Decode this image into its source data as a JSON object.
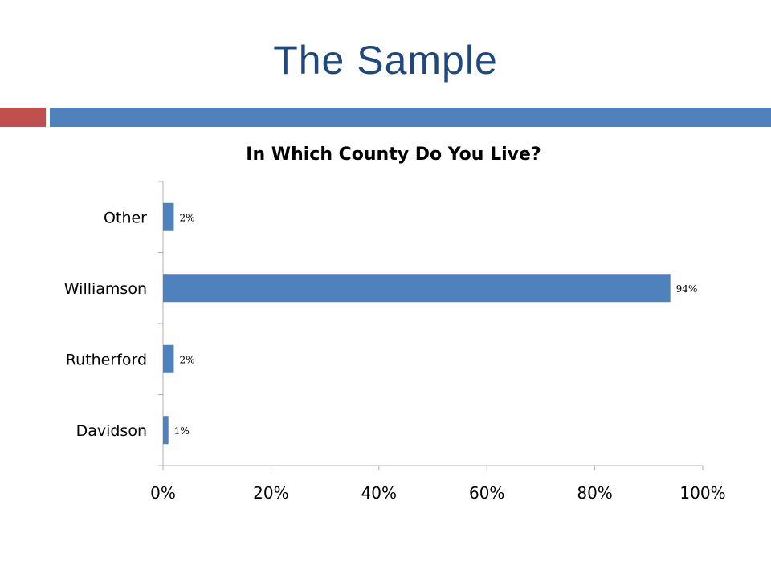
{
  "slide": {
    "title": "The Sample"
  },
  "colors": {
    "title": "#1f497d",
    "accent_red": "#c0504d",
    "accent_blue": "#4f81bd",
    "bar": "#4f81bd",
    "axis": "#b0b0b0"
  },
  "chart_data": {
    "type": "bar",
    "orientation": "horizontal",
    "title": "In Which County Do You Live?",
    "categories": [
      "Other",
      "Williamson",
      "Rutherford",
      "Davidson"
    ],
    "values": [
      2,
      94,
      2,
      1
    ],
    "data_labels": [
      "2%",
      "94%",
      "2%",
      "1%"
    ],
    "x_ticks": [
      "0%",
      "20%",
      "40%",
      "60%",
      "80%",
      "100%"
    ],
    "xlim": [
      0,
      100
    ],
    "xlabel": "",
    "ylabel": "",
    "grid": false,
    "legend": "none"
  }
}
